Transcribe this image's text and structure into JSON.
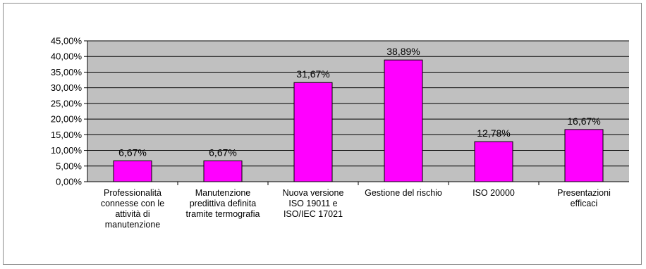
{
  "chart_data": {
    "type": "bar",
    "title": "",
    "xlabel": "",
    "ylabel": "",
    "ylim": [
      0,
      45
    ],
    "yticks": [
      "0,00%",
      "5,00%",
      "10,00%",
      "15,00%",
      "20,00%",
      "25,00%",
      "30,00%",
      "35,00%",
      "40,00%",
      "45,00%"
    ],
    "categories": [
      "Professionalità\nconnesse con le\nattività di\nmanutenzione",
      "Manutenzione\npredittiva definita\ntramite termografia",
      "Nuova versione\nISO 19011 e\nISO/IEC 17021",
      "Gestione del rischio",
      "ISO 20000",
      "Presentazioni\nefficaci"
    ],
    "values": [
      6.67,
      6.67,
      31.67,
      38.89,
      12.78,
      16.67
    ],
    "value_labels": [
      "6,67%",
      "6,67%",
      "31,67%",
      "38,89%",
      "12,78%",
      "16,67%"
    ],
    "grid": true,
    "legend": "none",
    "colors": {
      "bar": "#ff00ff",
      "plot_bg": "#c0c0c0",
      "grid": "#000000"
    }
  }
}
